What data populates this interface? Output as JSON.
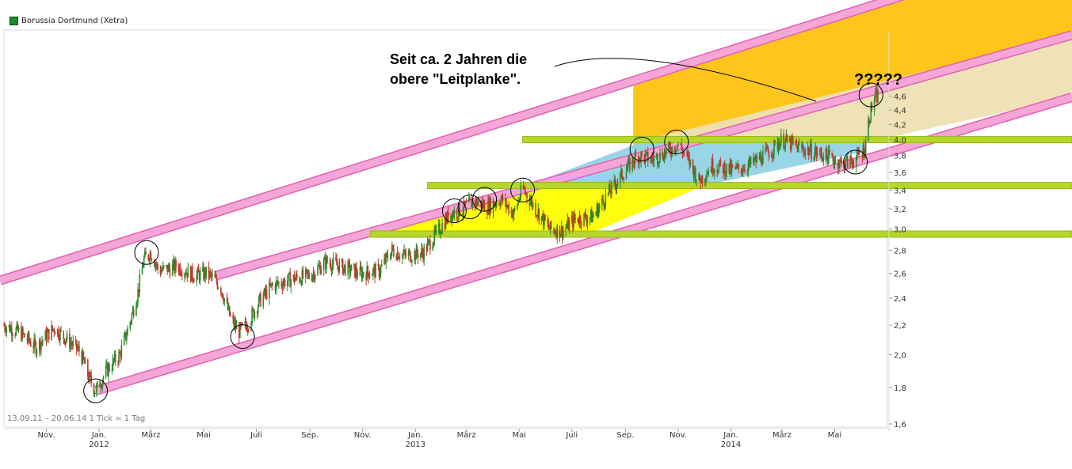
{
  "window": {
    "title": "Borussia Dortmund (Xetra)"
  },
  "legend": {
    "label": "Borussia Dortmund (Xetra)",
    "color": "#1f8a2c"
  },
  "annotation": {
    "text": "Seit ca. 2 Jahren die\nobere \"Leitplanke\"."
  },
  "question_marks": "?????",
  "range_info": "13.09.11 – 20.06.14   1 Tick = 1 Tag",
  "colors": {
    "candle_up": "#2a8a2a",
    "candle_down": "#c0392b",
    "channel_pink": "#f4a7d6",
    "channel_edge": "#e35fb5",
    "support_lime": "#b5d62a",
    "zone_orange": "#ffc20f",
    "zone_beige": "#eee0b4",
    "zone_blue": "#92d3e6",
    "zone_yellow": "#ffff00"
  },
  "chart_data": {
    "type": "candlestick",
    "title": "Borussia Dortmund (Xetra)",
    "y_scale": "log",
    "ylim": [
      1.6,
      4.8
    ],
    "y_ticks": [
      "1,6",
      "1,8",
      "2,0",
      "2,2",
      "2,4",
      "2,6",
      "2,8",
      "3,0",
      "3,2",
      "3,4",
      "3,6",
      "3,8",
      "4,0",
      "4,2",
      "4,4",
      "4,6"
    ],
    "x_ticks": [
      {
        "label": "Nov.",
        "year": ""
      },
      {
        "label": "Jan.",
        "year": "2012"
      },
      {
        "label": "März",
        "year": ""
      },
      {
        "label": "Mai",
        "year": ""
      },
      {
        "label": "Juli",
        "year": ""
      },
      {
        "label": "Sep.",
        "year": ""
      },
      {
        "label": "Nov.",
        "year": ""
      },
      {
        "label": "Jan.",
        "year": "2013"
      },
      {
        "label": "März",
        "year": ""
      },
      {
        "label": "Mai",
        "year": ""
      },
      {
        "label": "Juli",
        "year": ""
      },
      {
        "label": "Sep.",
        "year": ""
      },
      {
        "label": "Nov.",
        "year": ""
      },
      {
        "label": "Jan.",
        "year": "2014"
      },
      {
        "label": "März",
        "year": ""
      },
      {
        "label": "Mai",
        "year": ""
      }
    ],
    "date_range": [
      "13.09.11",
      "20.06.14"
    ],
    "series": [
      {
        "points": [
          [
            "2011-09-13",
            2.2
          ],
          [
            "2011-10-01",
            2.15
          ],
          [
            "2011-10-20",
            2.05
          ],
          [
            "2011-11-10",
            2.18
          ],
          [
            "2011-11-25",
            2.1
          ],
          [
            "2011-12-10",
            2.02
          ],
          [
            "2011-12-20",
            1.86
          ],
          [
            "2011-12-28",
            1.78
          ],
          [
            "2012-01-10",
            1.9
          ],
          [
            "2012-01-25",
            2.0
          ],
          [
            "2012-02-05",
            2.2
          ],
          [
            "2012-02-15",
            2.45
          ],
          [
            "2012-02-22",
            2.72
          ],
          [
            "2012-03-01",
            2.78
          ],
          [
            "2012-03-10",
            2.62
          ],
          [
            "2012-04-01",
            2.66
          ],
          [
            "2012-04-20",
            2.58
          ],
          [
            "2012-05-05",
            2.6
          ],
          [
            "2012-05-20",
            2.5
          ],
          [
            "2012-06-01",
            2.25
          ],
          [
            "2012-06-10",
            2.15
          ],
          [
            "2012-06-20",
            2.2
          ],
          [
            "2012-07-05",
            2.38
          ],
          [
            "2012-07-20",
            2.5
          ],
          [
            "2012-08-10",
            2.55
          ],
          [
            "2012-09-01",
            2.58
          ],
          [
            "2012-09-20",
            2.7
          ],
          [
            "2012-10-10",
            2.65
          ],
          [
            "2012-10-30",
            2.6
          ],
          [
            "2012-11-20",
            2.62
          ],
          [
            "2012-12-05",
            2.8
          ],
          [
            "2012-12-20",
            2.75
          ],
          [
            "2013-01-10",
            2.78
          ],
          [
            "2013-01-25",
            2.95
          ],
          [
            "2013-02-10",
            3.15
          ],
          [
            "2013-02-25",
            3.2
          ],
          [
            "2013-03-10",
            3.28
          ],
          [
            "2013-03-25",
            3.22
          ],
          [
            "2013-04-10",
            3.3
          ],
          [
            "2013-04-25",
            3.15
          ],
          [
            "2013-05-05",
            3.42
          ],
          [
            "2013-05-20",
            3.2
          ],
          [
            "2013-06-05",
            3.0
          ],
          [
            "2013-06-20",
            2.98
          ],
          [
            "2013-07-05",
            3.1
          ],
          [
            "2013-07-25",
            3.12
          ],
          [
            "2013-08-15",
            3.4
          ],
          [
            "2013-08-30",
            3.6
          ],
          [
            "2013-09-15",
            3.8
          ],
          [
            "2013-10-01",
            3.75
          ],
          [
            "2013-10-20",
            3.85
          ],
          [
            "2013-11-01",
            3.95
          ],
          [
            "2013-11-15",
            3.7
          ],
          [
            "2013-11-25",
            3.5
          ],
          [
            "2013-12-10",
            3.68
          ],
          [
            "2014-01-05",
            3.62
          ],
          [
            "2014-01-25",
            3.7
          ],
          [
            "2014-02-15",
            3.85
          ],
          [
            "2014-03-01",
            4.0
          ],
          [
            "2014-03-20",
            3.9
          ],
          [
            "2014-04-05",
            3.85
          ],
          [
            "2014-04-25",
            3.78
          ],
          [
            "2014-05-10",
            3.7
          ],
          [
            "2014-05-25",
            3.75
          ],
          [
            "2014-06-05",
            3.9
          ],
          [
            "2014-06-10",
            4.3
          ],
          [
            "2014-06-15",
            4.55
          ],
          [
            "2014-06-20",
            4.6
          ]
        ]
      }
    ],
    "channel_lines": [
      {
        "from": [
          "2011-09-13",
          2.55
        ],
        "to": [
          "2014-06-20",
          6.2
        ]
      },
      {
        "from": [
          "2012-05-15",
          2.58
        ],
        "to": [
          "2014-06-20",
          4.7
        ]
      },
      {
        "from": [
          "2011-12-28",
          1.78
        ],
        "to": [
          "2014-06-20",
          3.8
        ]
      }
    ],
    "support_levels": [
      2.95,
      3.45,
      4.0
    ],
    "grid": false,
    "legend_position": "top-left"
  }
}
